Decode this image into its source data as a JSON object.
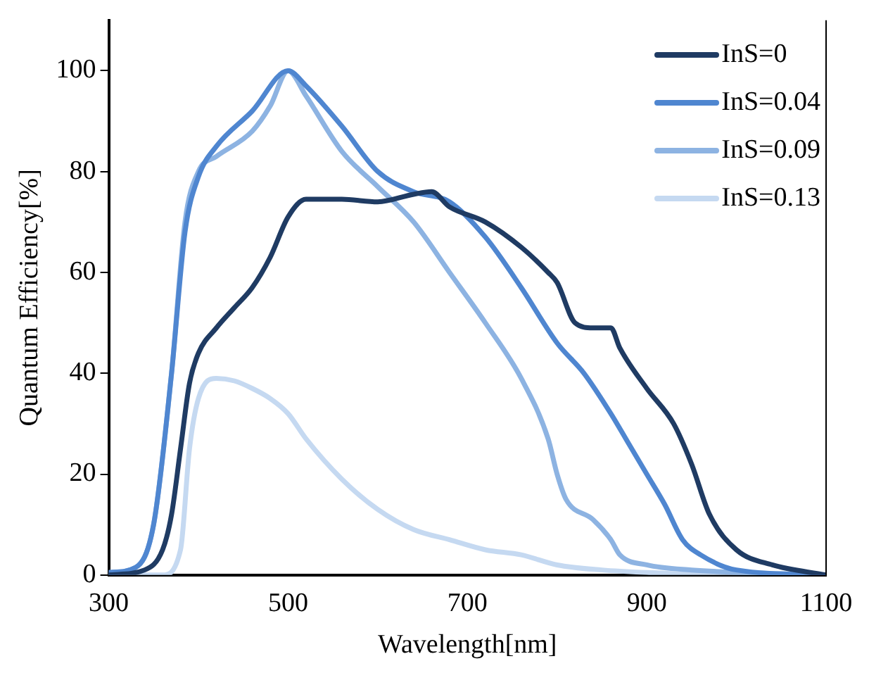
{
  "chart_data": {
    "type": "line",
    "xlabel": "Wavelength[nm]",
    "ylabel": "Quantum Efficiency[%]",
    "xlim": [
      300,
      1100
    ],
    "xticks": [
      300,
      500,
      700,
      900,
      1100
    ],
    "ylim": [
      0,
      110
    ],
    "yticks": [
      0,
      20,
      40,
      60,
      80,
      100
    ],
    "grid": false,
    "legend": "top right",
    "marker": "none",
    "line_style": "solid",
    "series": [
      {
        "name": "InS=0",
        "color": "#1f3b63",
        "x": [
          300,
          340,
          360,
          370,
          380,
          390,
          400,
          420,
          440,
          460,
          480,
          500,
          520,
          560,
          600,
          640,
          660,
          680,
          720,
          760,
          790,
          800,
          820,
          840,
          860,
          870,
          900,
          930,
          950,
          970,
          1000,
          1040,
          1100
        ],
        "values": [
          0,
          1,
          5,
          12,
          25,
          38,
          44,
          49,
          53,
          57,
          63,
          71,
          74.5,
          74.5,
          74,
          75.5,
          76,
          73,
          70,
          65,
          60,
          58,
          50,
          49,
          49,
          45,
          37,
          30,
          22,
          12,
          5,
          2,
          0
        ]
      },
      {
        "name": "InS=0.04",
        "color": "#4f86d0",
        "x": [
          300,
          330,
          350,
          370,
          385,
          400,
          420,
          460,
          500,
          520,
          560,
          600,
          640,
          680,
          720,
          760,
          800,
          830,
          860,
          880,
          900,
          920,
          940,
          960,
          1000,
          1100
        ],
        "values": [
          0.5,
          1.5,
          10,
          40,
          68,
          79,
          85,
          92,
          100,
          97,
          89,
          80,
          76,
          74,
          67,
          57,
          46,
          40,
          32,
          26,
          20,
          14,
          7,
          4,
          1,
          0
        ]
      },
      {
        "name": "InS=0.09",
        "color": "#8db3e2",
        "x": [
          300,
          330,
          350,
          370,
          385,
          400,
          420,
          460,
          480,
          500,
          520,
          560,
          600,
          640,
          680,
          720,
          760,
          790,
          800,
          810,
          840,
          860,
          870,
          900,
          950,
          1100
        ],
        "values": [
          0.5,
          1.5,
          10,
          40,
          70,
          80,
          83,
          88,
          93,
          100,
          95,
          84,
          77,
          70,
          60,
          50,
          39,
          27,
          20,
          15,
          11,
          7,
          4,
          2,
          1,
          0
        ]
      },
      {
        "name": "InS=0.13",
        "color": "#c5d9f1",
        "x": [
          300,
          360,
          380,
          390,
          400,
          420,
          440,
          460,
          480,
          500,
          520,
          560,
          600,
          640,
          680,
          720,
          760,
          800,
          850,
          900,
          1000,
          1100
        ],
        "values": [
          0,
          0,
          5,
          25,
          35,
          39,
          38.5,
          37,
          35,
          32,
          27,
          19,
          13,
          9,
          7,
          5,
          4,
          2,
          1,
          0.5,
          0,
          0
        ]
      }
    ]
  }
}
